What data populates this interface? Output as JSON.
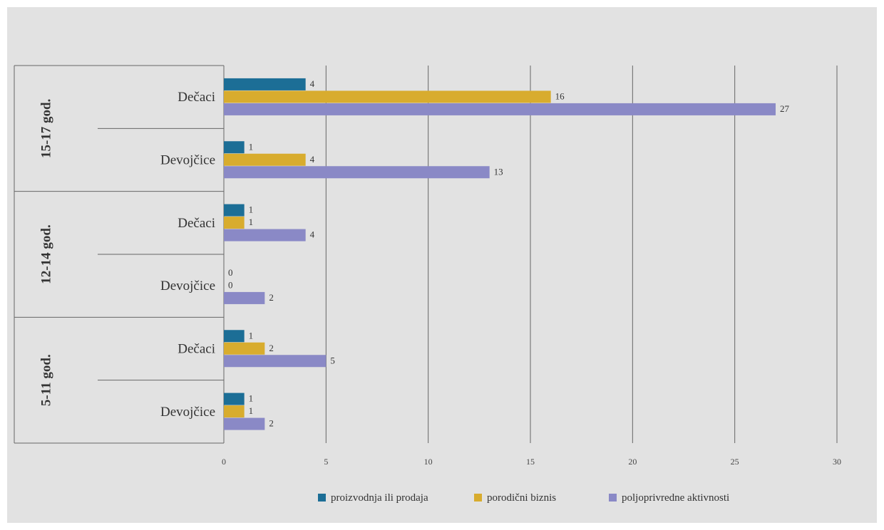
{
  "chart_data": {
    "type": "bar",
    "orientation": "horizontal",
    "xlim": [
      0,
      30
    ],
    "x_ticks": [
      0,
      5,
      10,
      15,
      20,
      25,
      30
    ],
    "grid": true,
    "legend_position": "bottom",
    "groups": [
      {
        "label": "15-17 god.",
        "categories": [
          "Dečaci",
          "Devojčice"
        ]
      },
      {
        "label": "12-14 god.",
        "categories": [
          "Dečaci",
          "Devojčice"
        ]
      },
      {
        "label": "5-11 god.",
        "categories": [
          "Dečaci",
          "Devojčice"
        ]
      }
    ],
    "series": [
      {
        "name": "proizvodnja ili prodaja",
        "color": "#1c6e96",
        "values": [
          4,
          1,
          1,
          0,
          1,
          1
        ]
      },
      {
        "name": "porodični biznis",
        "color": "#d8ac2e",
        "values": [
          16,
          4,
          1,
          0,
          2,
          1
        ]
      },
      {
        "name": "poljoprivredne aktivnosti",
        "color": "#8a89c6",
        "values": [
          27,
          13,
          4,
          2,
          5,
          2
        ]
      }
    ]
  }
}
